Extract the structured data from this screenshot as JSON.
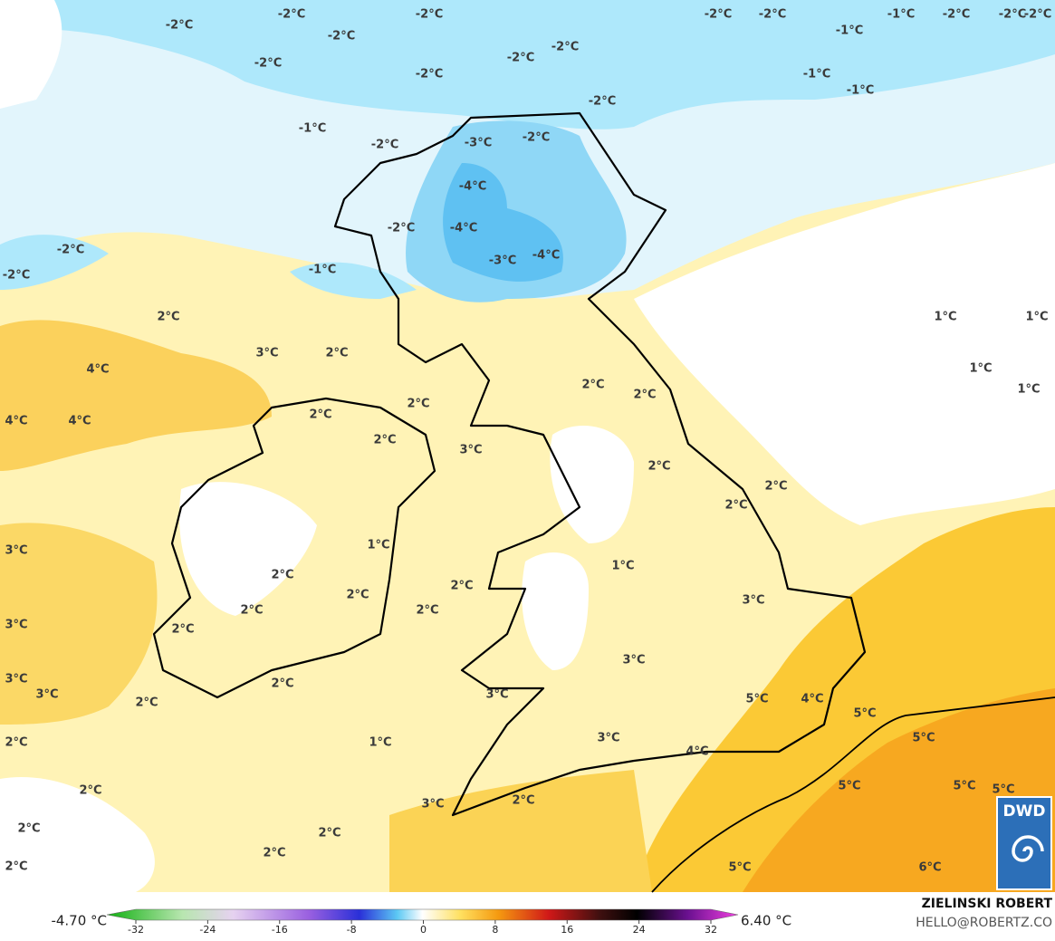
{
  "map": {
    "labels": [
      "-2°C",
      "-2°C",
      "-2°C",
      "-2°C",
      "-2°C",
      "-2°C",
      "-2°C",
      "-2°C",
      "-2°C",
      "-2°C",
      "-1°C",
      "-2°C",
      "-2°C",
      "-2°C",
      "-1°C",
      "-1°C",
      "-1°C",
      "-2°C",
      "-1°C",
      "-2°C",
      "-3°C",
      "-2°C",
      "-4°C",
      "-2°C",
      "-4°C",
      "-3°C",
      "-4°C",
      "-2°C",
      "-2°C",
      "-1°C",
      "2°C",
      "3°C",
      "2°C",
      "4°C",
      "4°C",
      "4°C",
      "2°C",
      "2°C",
      "2°C",
      "3°C",
      "2°C",
      "2°C",
      "2°C",
      "2°C",
      "2°C",
      "1°C",
      "1°C",
      "1°C",
      "1°C",
      "3°C",
      "1°C",
      "2°C",
      "2°C",
      "1°C",
      "2°C",
      "2°C",
      "2°C",
      "3°C",
      "3°C",
      "2°C",
      "3°C",
      "3°C",
      "2°C",
      "2°C",
      "3°C",
      "3°C",
      "5°C",
      "4°C",
      "5°C",
      "2°C",
      "1°C",
      "3°C",
      "4°C",
      "5°C",
      "2°C",
      "5°C",
      "5°C",
      "5°C",
      "3°C",
      "2°C",
      "2°C",
      "2°C",
      "2°C",
      "2°C",
      "5°C",
      "6°C"
    ]
  },
  "colorbar": {
    "min_label": "-4.70 °C",
    "max_label": "6.40 °C",
    "ticks": [
      -32,
      -24,
      -16,
      -8,
      0,
      8,
      16,
      24,
      32
    ]
  },
  "credit": {
    "author": "ZIELINSKI ROBERT",
    "contact": "HELLO@ROBERTZ.CO"
  },
  "logo": "DWD"
}
